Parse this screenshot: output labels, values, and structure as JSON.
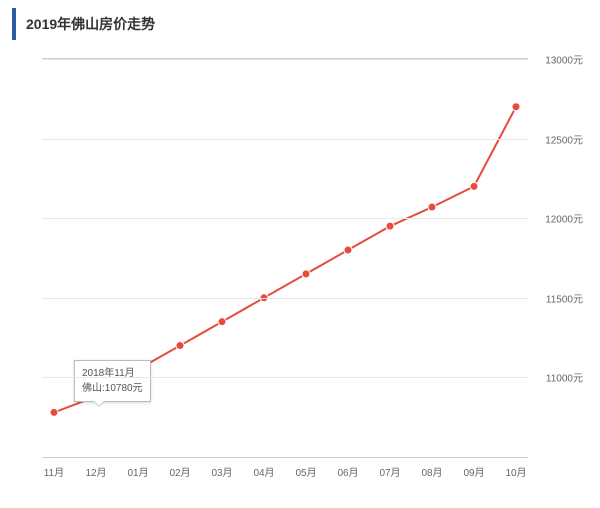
{
  "title": "2019年佛山房价走势",
  "chart": {
    "type": "line",
    "line_color": "#e64b3c",
    "line_width": 2,
    "marker_style": "circle",
    "marker_size": 4,
    "marker_fill": "#e64b3c",
    "background_color": "#ffffff",
    "grid_color": "#e8e8e8",
    "axis_color": "#cccccc",
    "font_color": "#666666",
    "label_fontsize": 10,
    "title_fontsize": 14,
    "title_accent_color": "#2a5caa",
    "y": {
      "min": 10500,
      "max": 13000,
      "ticks": [
        13000,
        12500,
        12000,
        11500,
        11000
      ],
      "tick_labels": [
        "13000元",
        "12500元",
        "12000元",
        "11500元",
        "11000元"
      ]
    },
    "x": {
      "categories": [
        "11月",
        "12月",
        "01月",
        "02月",
        "03月",
        "04月",
        "05月",
        "06月",
        "07月",
        "08月",
        "09月",
        "10月"
      ]
    },
    "series": {
      "name": "佛山",
      "values": [
        10780,
        10880,
        11050,
        11200,
        11350,
        11500,
        11650,
        11800,
        11950,
        12070,
        12200,
        12700
      ]
    }
  },
  "tooltip": {
    "line1": "2018年11月",
    "line2": "佛山:10780元",
    "anchor_index": 0
  }
}
